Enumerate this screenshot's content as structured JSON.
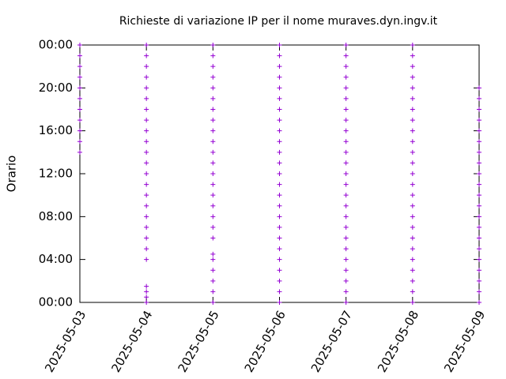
{
  "chart_data": {
    "type": "strip",
    "title": "Richieste di variazione IP per il nome muraves.dyn.ingv.it",
    "y_label": "Orario",
    "color": "#9400d3",
    "categories": [
      "2025-05-03",
      "2025-05-04",
      "2025-05-05",
      "2025-05-06",
      "2025-05-07",
      "2025-05-08",
      "2025-05-09"
    ],
    "values": [
      [
        14,
        15,
        16,
        17,
        18,
        19,
        20,
        21,
        22,
        23,
        24
      ],
      [
        0,
        0.5,
        1,
        1.5,
        4,
        5,
        6,
        7,
        8,
        9,
        10,
        11,
        12,
        13,
        14,
        15,
        16,
        17,
        18,
        19,
        20,
        21,
        22,
        23,
        24
      ],
      [
        0,
        1,
        2,
        3,
        4,
        4.5,
        6,
        7,
        8,
        9,
        10,
        11,
        12,
        13,
        14,
        15,
        16,
        17,
        18,
        19,
        20,
        21,
        22,
        23,
        24
      ],
      [
        0,
        1,
        2,
        3,
        4,
        5,
        6,
        7,
        8,
        9,
        10,
        11,
        12,
        13,
        14,
        15,
        16,
        17,
        18,
        19,
        20,
        21,
        22,
        23,
        24
      ],
      [
        0,
        1,
        2,
        3,
        4,
        5,
        6,
        7,
        8,
        9,
        10,
        11,
        12,
        13,
        14,
        15,
        16,
        17,
        18,
        19,
        20,
        21,
        22,
        23,
        24
      ],
      [
        0,
        1,
        2,
        3,
        4,
        5,
        6,
        7,
        8,
        9,
        10,
        11,
        12,
        13,
        14,
        15,
        16,
        17,
        18,
        19,
        20,
        21,
        22,
        23,
        24
      ],
      [
        0,
        1,
        2,
        3,
        4,
        5,
        6,
        7,
        8,
        9,
        10,
        11,
        12,
        13,
        14,
        15,
        16,
        17,
        18,
        19,
        20
      ]
    ],
    "ylim": [
      0,
      24
    ],
    "yticks": [
      {
        "value": 0,
        "label": "00:00"
      },
      {
        "value": 4,
        "label": "04:00"
      },
      {
        "value": 8,
        "label": "08:00"
      },
      {
        "value": 12,
        "label": "12:00"
      },
      {
        "value": 16,
        "label": "16:00"
      },
      {
        "value": 20,
        "label": "20:00"
      },
      {
        "value": 24,
        "label": "00:00"
      }
    ]
  }
}
